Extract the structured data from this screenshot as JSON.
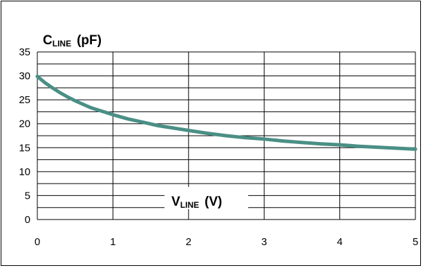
{
  "colors": {
    "curve": "#4a8f86",
    "grid": "#000000",
    "frame": "#000000",
    "background": "#ffffff"
  },
  "chart_data": {
    "type": "line",
    "ylabel": {
      "main": "C",
      "sub": "LINE",
      "unit": "(pF)"
    },
    "xlabel": {
      "main": "V",
      "sub": "LINE",
      "unit": "(V)"
    },
    "xlim": [
      0,
      5
    ],
    "ylim": [
      0,
      35
    ],
    "x_ticks": [
      "0",
      "1",
      "2",
      "3",
      "4",
      "5"
    ],
    "y_ticks": [
      "0",
      "5",
      "10",
      "15",
      "20",
      "25",
      "30",
      "35"
    ],
    "grid": {
      "major_x": true,
      "major_y": true,
      "minor_y_step": 2.5
    },
    "series": [
      {
        "x": [
          0,
          0.1,
          0.2,
          0.3,
          0.4,
          0.5,
          0.6,
          0.7,
          0.8,
          0.9,
          1.0,
          1.2,
          1.4,
          1.6,
          1.8,
          2.0,
          2.25,
          2.5,
          2.75,
          3.0,
          3.25,
          3.5,
          3.75,
          4.0,
          4.25,
          4.5,
          4.75,
          5.0
        ],
        "y": [
          29.9,
          28.6,
          27.5,
          26.5,
          25.6,
          24.8,
          24.1,
          23.4,
          22.9,
          22.4,
          21.9,
          21.0,
          20.3,
          19.6,
          19.1,
          18.6,
          18.0,
          17.5,
          17.1,
          16.8,
          16.4,
          16.1,
          15.8,
          15.6,
          15.3,
          15.1,
          14.9,
          14.7
        ]
      }
    ]
  }
}
